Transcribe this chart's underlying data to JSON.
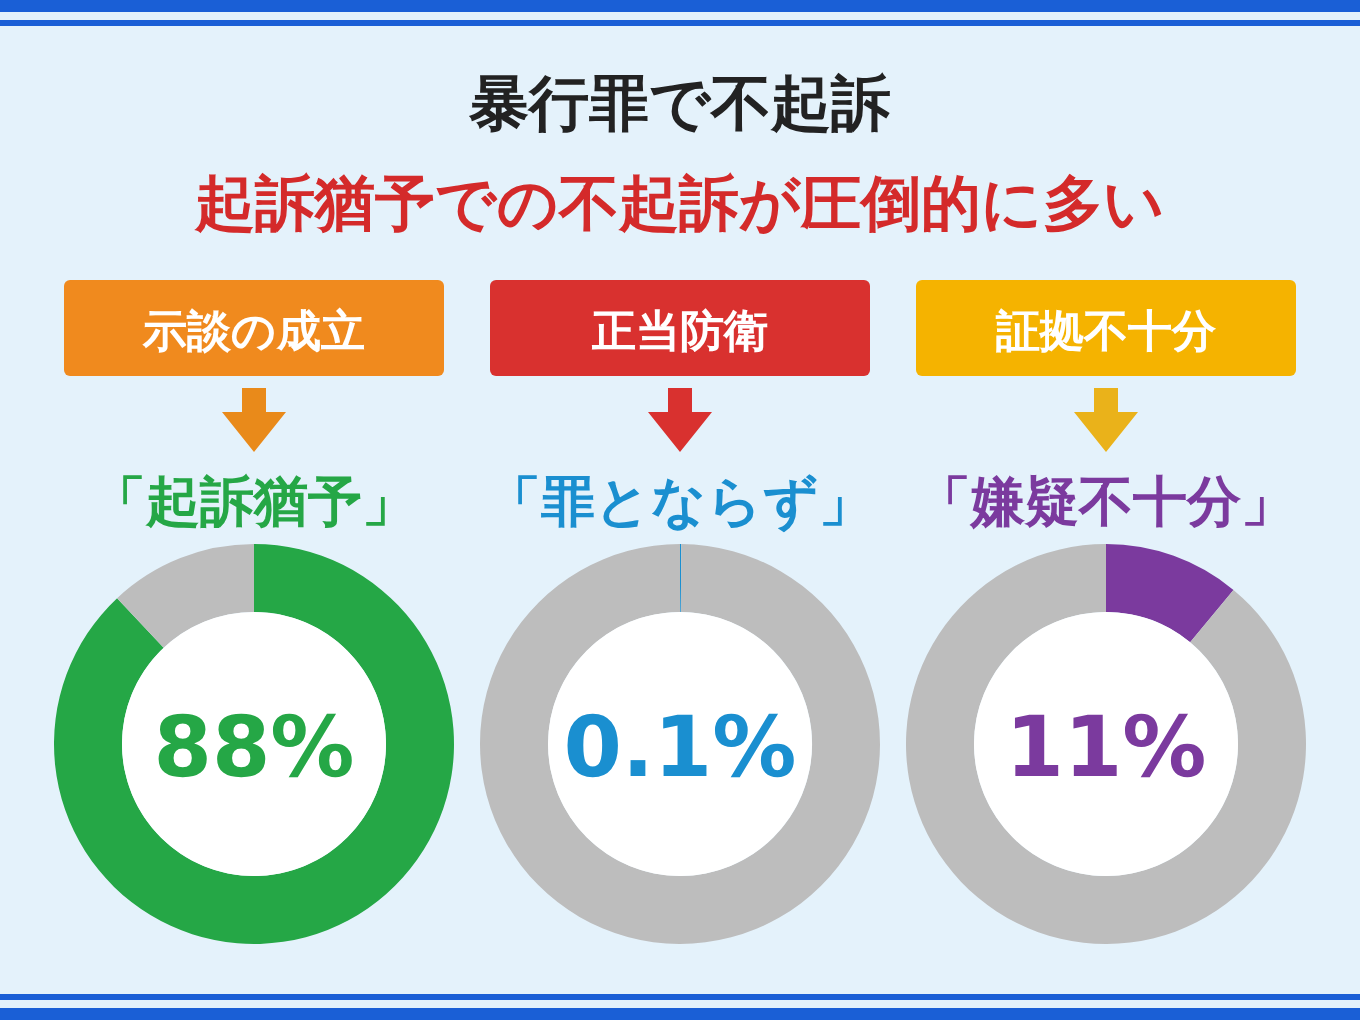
{
  "chart_data": [
    {
      "type": "other",
      "title": "暴行罪で不起訴",
      "subtitle": "起訴猶予での不起訴が圧倒的に多い"
    },
    {
      "type": "donut",
      "title": "「起訴猶予」",
      "annotations": [
        "示談の成立",
        "88%"
      ],
      "categories": [
        null,
        null
      ],
      "values": [
        88,
        12
      ],
      "colors": [
        "#25a746",
        "#bdbdbd"
      ]
    },
    {
      "type": "donut",
      "title": "「罪とならず」",
      "annotations": [
        "正当防衛",
        "0.1%"
      ],
      "categories": [
        null,
        null
      ],
      "values": [
        0.1,
        99.9
      ],
      "colors": [
        "#1a8fd0",
        "#bdbdbd"
      ]
    },
    {
      "type": "donut",
      "title": "「嫌疑不十分」",
      "annotations": [
        "証拠不十分",
        "11%"
      ],
      "categories": [
        null,
        null
      ],
      "values": [
        11,
        89
      ],
      "colors": [
        "#7b3a9e",
        "#bdbdbd"
      ]
    }
  ]
}
